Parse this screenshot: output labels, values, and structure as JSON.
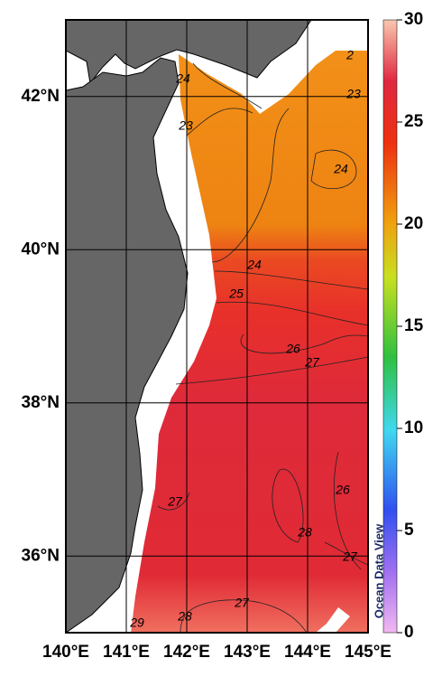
{
  "map": {
    "xlim": [
      140,
      145
    ],
    "ylim": [
      35,
      43
    ],
    "xticks": [
      {
        "value": 140,
        "label": "140°E"
      },
      {
        "value": 141,
        "label": "141°E"
      },
      {
        "value": 142,
        "label": "142°E"
      },
      {
        "value": 143,
        "label": "143°E"
      },
      {
        "value": 144,
        "label": "144°E"
      },
      {
        "value": 145,
        "label": "145°E"
      }
    ],
    "yticks": [
      {
        "value": 36,
        "label": "36°N"
      },
      {
        "value": 38,
        "label": "38°N"
      },
      {
        "value": 40,
        "label": "40°N"
      },
      {
        "value": 42,
        "label": "42°N"
      }
    ],
    "colorbar": {
      "lim": [
        0,
        30
      ],
      "ticks": [
        0,
        5,
        10,
        15,
        20,
        25,
        30
      ]
    },
    "contour_labels": [
      24,
      23,
      2,
      23,
      24,
      24,
      25,
      26,
      27,
      27,
      28,
      26,
      27,
      28,
      27,
      29
    ],
    "watermark": "Ocean Data View"
  }
}
